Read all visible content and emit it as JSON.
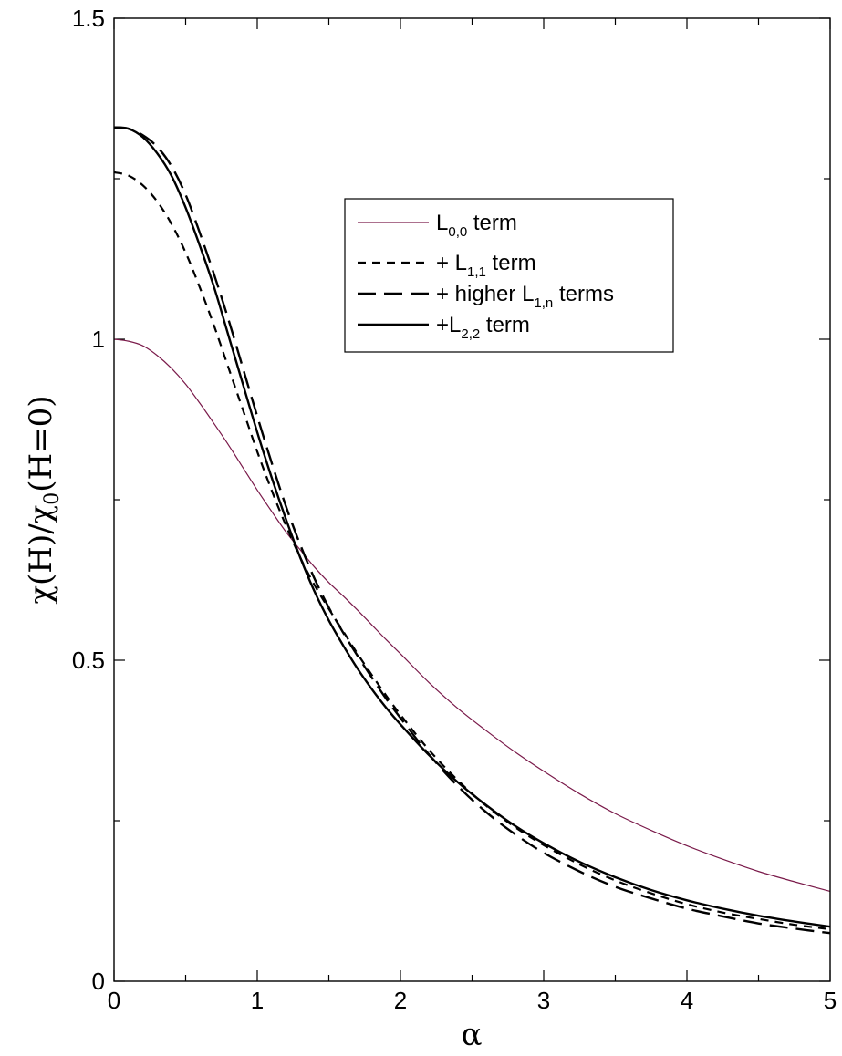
{
  "chart_data": {
    "type": "line",
    "xlabel": "α",
    "ylabel": {
      "main": "χ(H)/χ",
      "sub": "0",
      "tail": "(H=0)"
    },
    "xlim": [
      0,
      5
    ],
    "ylim": [
      0,
      1.5
    ],
    "x_ticks": [
      "0",
      "1",
      "2",
      "3",
      "4",
      "5"
    ],
    "x_tick_values": [
      0,
      1,
      2,
      3,
      4,
      5
    ],
    "y_ticks": [
      "0",
      "0.5",
      "1",
      "1.5"
    ],
    "y_tick_values": [
      0,
      0.5,
      1,
      1.5
    ],
    "grid": false,
    "legend_position": "upper-right",
    "x": [
      0,
      0.1,
      0.2,
      0.3,
      0.4,
      0.5,
      0.6,
      0.7,
      0.8,
      0.9,
      1.0,
      1.1,
      1.2,
      1.3,
      1.4,
      1.5,
      1.6,
      1.7,
      1.8,
      1.9,
      2.0,
      2.2,
      2.4,
      2.6,
      2.8,
      3.0,
      3.25,
      3.5,
      3.75,
      4.0,
      4.25,
      4.5,
      4.75,
      5.0
    ],
    "series": [
      {
        "name": "L_{0,0} term",
        "legend": {
          "prefix": "L",
          "sub": "0,0",
          "suffix": " term"
        },
        "color": "#7a1a4a",
        "dash": "none",
        "width": 1.2,
        "values": [
          1.0,
          0.997,
          0.99,
          0.975,
          0.955,
          0.93,
          0.9,
          0.868,
          0.835,
          0.8,
          0.765,
          0.732,
          0.7,
          0.672,
          0.645,
          0.621,
          0.6,
          0.578,
          0.555,
          0.532,
          0.51,
          0.465,
          0.425,
          0.39,
          0.357,
          0.327,
          0.292,
          0.261,
          0.235,
          0.211,
          0.19,
          0.171,
          0.155,
          0.14
        ]
      },
      {
        "name": "+ L_{1,1} term",
        "legend": {
          "prefix": "+ L",
          "sub": "1,1",
          "suffix": " term"
        },
        "color": "#000000",
        "dash": "9,7",
        "width": 2.2,
        "values": [
          1.26,
          1.255,
          1.24,
          1.215,
          1.18,
          1.135,
          1.08,
          1.02,
          0.955,
          0.89,
          0.825,
          0.765,
          0.71,
          0.66,
          0.617,
          0.58,
          0.545,
          0.51,
          0.477,
          0.445,
          0.415,
          0.36,
          0.313,
          0.273,
          0.24,
          0.212,
          0.182,
          0.157,
          0.137,
          0.12,
          0.107,
          0.097,
          0.088,
          0.081
        ]
      },
      {
        "name": "+ higher L_{1,n} terms",
        "legend": {
          "prefix": "+ higher L",
          "sub": "1,n",
          "suffix": " terms"
        },
        "color": "#000000",
        "dash": "20,9",
        "width": 2.4,
        "values": [
          1.33,
          1.328,
          1.318,
          1.3,
          1.27,
          1.225,
          1.165,
          1.1,
          1.03,
          0.955,
          0.88,
          0.808,
          0.74,
          0.68,
          0.627,
          0.582,
          0.543,
          0.507,
          0.473,
          0.44,
          0.41,
          0.353,
          0.304,
          0.263,
          0.229,
          0.2,
          0.171,
          0.147,
          0.129,
          0.113,
          0.101,
          0.09,
          0.082,
          0.075
        ]
      },
      {
        "name": "+L_{2,2} term",
        "legend": {
          "prefix": "+L",
          "sub": "2,2",
          "suffix": " term"
        },
        "color": "#000000",
        "dash": "none",
        "width": 2.4,
        "values": [
          1.33,
          1.328,
          1.315,
          1.29,
          1.255,
          1.205,
          1.145,
          1.08,
          1.005,
          0.93,
          0.855,
          0.785,
          0.72,
          0.66,
          0.607,
          0.562,
          0.523,
          0.487,
          0.455,
          0.426,
          0.4,
          0.352,
          0.31,
          0.274,
          0.242,
          0.215,
          0.186,
          0.162,
          0.142,
          0.126,
          0.113,
          0.102,
          0.093,
          0.085
        ]
      }
    ]
  }
}
